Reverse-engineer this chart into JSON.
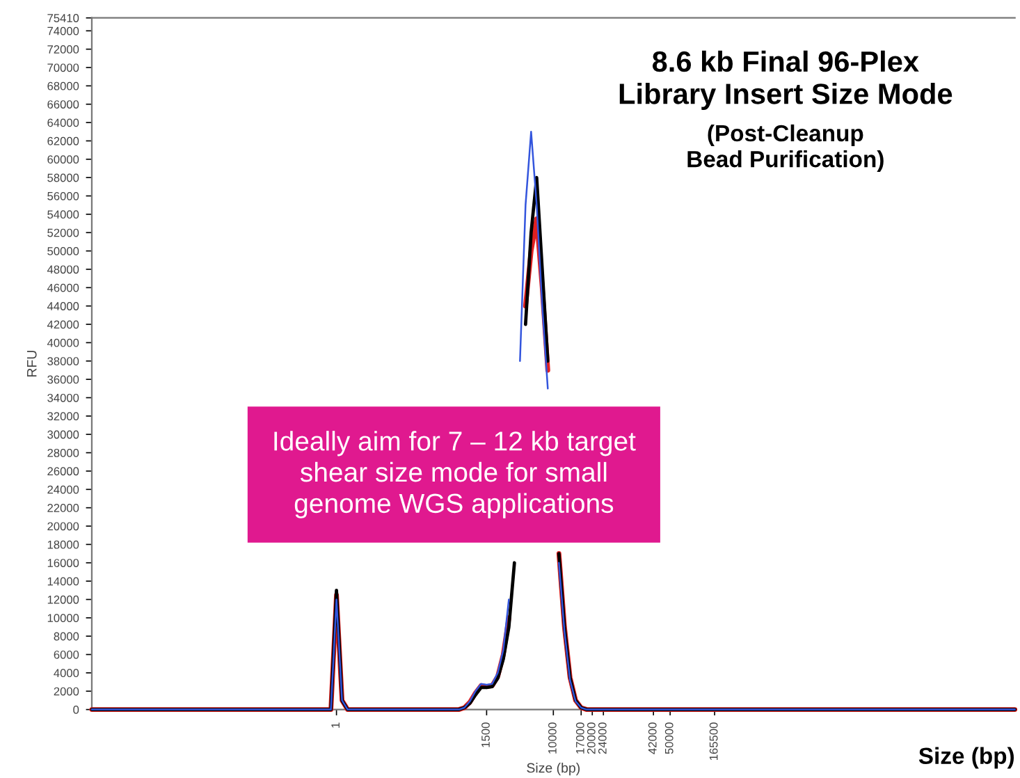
{
  "chart_data": {
    "type": "line",
    "title": "8.6 kb Final 96-Plex\nLibrary Insert Size Mode",
    "subtitle": "(Post-Cleanup\nBead Purification)",
    "xlabel": "Size (bp)",
    "ylabel": "RFU",
    "annotations": [
      "Ideally aim for 7 – 12 kb target\nshear size mode for small\ngenome WGS applications",
      "Size (bp)"
    ],
    "categories": [
      null,
      null,
      null,
      null,
      null,
      null,
      null,
      null,
      null,
      null,
      null,
      null,
      null,
      null,
      null,
      null,
      null,
      null,
      null,
      null,
      null,
      null,
      null,
      null,
      null,
      null,
      null,
      null,
      null,
      null,
      null,
      null,
      null,
      null,
      null,
      null,
      null,
      null,
      null,
      null,
      null,
      null,
      null,
      null,
      "1",
      null,
      null,
      null,
      null,
      null,
      null,
      null,
      null,
      null,
      null,
      null,
      null,
      null,
      null,
      null,
      null,
      null,
      null,
      null,
      null,
      null,
      null,
      null,
      null,
      null,
      null,
      "1500",
      null,
      null,
      null,
      null,
      null,
      null,
      null,
      null,
      null,
      null,
      null,
      "10000",
      null,
      null,
      null,
      null,
      "17000",
      null,
      "20000",
      null,
      "24000",
      null,
      null,
      null,
      null,
      null,
      null,
      null,
      null,
      "42000",
      null,
      null,
      "50000",
      null,
      null,
      null,
      null,
      null,
      null,
      null,
      "165500",
      null,
      null,
      null,
      null,
      null,
      null,
      null,
      null,
      null,
      null,
      null,
      null,
      null,
      null,
      null,
      null,
      null,
      null,
      null,
      null,
      null,
      null,
      null,
      null,
      null,
      null,
      null,
      null,
      null,
      null,
      null,
      null,
      null,
      null,
      null,
      null,
      null,
      null,
      null,
      null,
      null,
      null,
      null,
      null,
      null,
      null,
      null,
      null,
      null,
      null,
      null,
      null,
      null,
      null
    ],
    "series": [
      {
        "color": "#3355dd",
        "values": [
          0,
          0,
          0,
          0,
          0,
          0,
          0,
          0,
          0,
          0,
          0,
          0,
          0,
          0,
          0,
          0,
          0,
          0,
          0,
          0,
          0,
          0,
          0,
          0,
          0,
          0,
          0,
          0,
          0,
          0,
          0,
          0,
          0,
          0,
          0,
          0,
          0,
          0,
          0,
          0,
          0,
          0,
          0,
          0,
          12000,
          1000,
          0,
          0,
          0,
          0,
          0,
          0,
          0,
          0,
          0,
          0,
          0,
          0,
          0,
          0,
          0,
          0,
          0,
          0,
          0,
          0,
          0,
          200,
          900,
          2000,
          2800,
          2700,
          2800,
          4000,
          6500,
          12000,
          null,
          38000,
          55000,
          63000,
          55000,
          44000,
          35000,
          null,
          16000,
          8500,
          3200,
          900,
          200,
          0,
          0,
          0,
          0,
          0,
          0,
          0,
          0,
          0,
          0,
          0,
          0,
          0,
          0,
          0,
          0,
          0,
          0,
          0,
          0,
          0,
          0,
          0,
          0,
          0,
          0,
          0,
          0,
          0,
          0,
          0,
          0,
          0,
          0,
          0,
          0,
          0,
          0,
          0,
          0,
          0,
          0,
          0,
          0,
          0,
          0,
          0,
          0,
          0,
          0,
          0,
          0,
          0,
          0,
          0,
          0,
          0,
          0,
          0,
          0,
          0,
          0,
          0,
          0,
          0,
          0,
          0,
          0,
          0,
          0,
          0,
          0,
          0,
          0,
          0,
          0,
          0,
          0
        ]
      },
      {
        "color": "#000000",
        "values": [
          0,
          0,
          0,
          0,
          0,
          0,
          0,
          0,
          0,
          0,
          0,
          0,
          0,
          0,
          0,
          0,
          0,
          0,
          0,
          0,
          0,
          0,
          0,
          0,
          0,
          0,
          0,
          0,
          0,
          0,
          0,
          0,
          0,
          0,
          0,
          0,
          0,
          0,
          0,
          0,
          0,
          0,
          0,
          0,
          13000,
          1000,
          0,
          0,
          0,
          0,
          0,
          0,
          0,
          0,
          0,
          0,
          0,
          0,
          0,
          0,
          0,
          0,
          0,
          0,
          0,
          0,
          0,
          200,
          700,
          1600,
          2400,
          2400,
          2500,
          3400,
          5500,
          9000,
          16000,
          null,
          42000,
          52000,
          58000,
          48000,
          38000,
          null,
          17000,
          9000,
          3500,
          1000,
          200,
          0,
          0,
          0,
          0,
          0,
          0,
          0,
          0,
          0,
          0,
          0,
          0,
          0,
          0,
          0,
          0,
          0,
          0,
          0,
          0,
          0,
          0,
          0,
          0,
          0,
          0,
          0,
          0,
          0,
          0,
          0,
          0,
          0,
          0,
          0,
          0,
          0,
          0,
          0,
          0,
          0,
          0,
          0,
          0,
          0,
          0,
          0,
          0,
          0,
          0,
          0,
          0,
          0,
          0,
          0,
          0,
          0,
          0,
          0,
          0,
          0,
          0,
          0,
          0,
          0,
          0,
          0,
          0,
          0,
          0,
          0,
          0,
          0,
          0,
          0,
          0,
          0,
          0
        ]
      },
      {
        "color": "#e02020",
        "values": [
          0,
          0,
          0,
          0,
          0,
          0,
          0,
          0,
          0,
          0,
          0,
          0,
          0,
          0,
          0,
          0,
          0,
          0,
          0,
          0,
          0,
          0,
          0,
          0,
          0,
          0,
          0,
          0,
          0,
          0,
          0,
          0,
          0,
          0,
          0,
          0,
          0,
          0,
          0,
          0,
          0,
          0,
          0,
          0,
          12500,
          1000,
          0,
          0,
          0,
          0,
          0,
          0,
          0,
          0,
          0,
          0,
          0,
          0,
          0,
          0,
          0,
          0,
          0,
          0,
          0,
          0,
          0,
          200,
          800,
          1800,
          2600,
          2500,
          2600,
          3600,
          6000,
          10000,
          null,
          null,
          44000,
          50000,
          53500,
          46000,
          37000,
          null,
          17000,
          9000,
          3500,
          1000,
          200,
          0,
          0,
          0,
          0,
          0,
          0,
          0,
          0,
          0,
          0,
          0,
          0,
          0,
          0,
          0,
          0,
          0,
          0,
          0,
          0,
          0,
          0,
          0,
          0,
          0,
          0,
          0,
          0,
          0,
          0,
          0,
          0,
          0,
          0,
          0,
          0,
          0,
          0,
          0,
          0,
          0,
          0,
          0,
          0,
          0,
          0,
          0,
          0,
          0,
          0,
          0,
          0,
          0,
          0,
          0,
          0,
          0,
          0,
          0,
          0,
          0,
          0,
          0,
          0,
          0,
          0,
          0,
          0,
          0,
          0,
          0,
          0,
          0,
          0,
          0,
          0,
          0,
          0
        ]
      }
    ],
    "ylim": [
      0,
      75410
    ],
    "yticks": [
      0,
      2000,
      4000,
      6000,
      8000,
      10000,
      12000,
      14000,
      16000,
      18000,
      20000,
      22000,
      24000,
      26000,
      28000,
      30000,
      32000,
      34000,
      36000,
      38000,
      40000,
      42000,
      44000,
      46000,
      48000,
      50000,
      52000,
      54000,
      56000,
      58000,
      60000,
      62000,
      64000,
      66000,
      68000,
      70000,
      72000,
      74000,
      75410
    ]
  }
}
